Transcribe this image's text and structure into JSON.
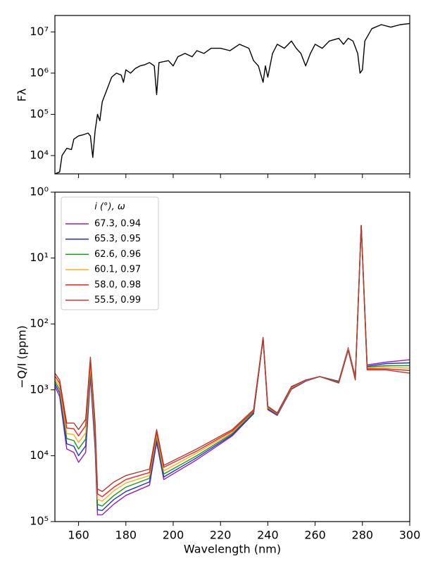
{
  "chart_data": [
    {
      "type": "line",
      "ylabel": "Fλ",
      "color": "#000000",
      "log_y": true,
      "xlim": [
        150,
        300
      ],
      "xticks": [
        160,
        180,
        200,
        220,
        240,
        260,
        280,
        300
      ],
      "ylim": [
        3600,
        25000000
      ],
      "yticks": [
        {
          "value": 10000,
          "label": "10⁴"
        },
        {
          "value": 100000,
          "label": "10⁵"
        },
        {
          "value": 1000000,
          "label": "10⁶"
        },
        {
          "value": 10000000,
          "label": "10⁷"
        }
      ],
      "x": [
        150,
        152,
        153,
        155,
        157,
        158,
        160,
        162,
        164,
        165,
        166,
        167,
        168,
        169,
        170,
        172,
        174,
        176,
        178,
        179,
        180,
        182,
        184,
        186,
        188,
        190,
        192,
        193,
        194,
        196,
        198,
        200,
        202,
        205,
        208,
        210,
        213,
        216,
        220,
        224,
        228,
        232,
        234,
        236,
        238,
        239,
        240,
        242,
        244,
        247,
        250,
        252,
        254,
        256,
        258,
        260,
        263,
        266,
        270,
        272,
        274,
        276,
        278,
        279,
        280,
        281,
        284,
        288,
        292,
        296,
        300
      ],
      "values": [
        3600,
        4000,
        10000,
        15000,
        14000,
        25000,
        30000,
        32000,
        35000,
        30000,
        9000,
        40000,
        100000,
        70000,
        200000,
        400000,
        800000,
        1000000,
        900000,
        600000,
        1200000,
        1000000,
        1300000,
        1500000,
        1600000,
        1800000,
        1500000,
        300000,
        1800000,
        1900000,
        2000000,
        1500000,
        2500000,
        3000000,
        2500000,
        3500000,
        3000000,
        4000000,
        4000000,
        3500000,
        5000000,
        4000000,
        2000000,
        1500000,
        600000,
        1500000,
        800000,
        3000000,
        5000000,
        4000000,
        6000000,
        4000000,
        3000000,
        1500000,
        3000000,
        5000000,
        4000000,
        6000000,
        7000000,
        5000000,
        7000000,
        6000000,
        3000000,
        1000000,
        1200000,
        6000000,
        12000000,
        15000000,
        13000000,
        15000000,
        16000000
      ]
    },
    {
      "type": "line",
      "xlabel": "Wavelength (nm)",
      "ylabel": "−Q/I (ppm)",
      "log_y": true,
      "invert_y": true,
      "xlim": [
        150,
        300
      ],
      "xticks": [
        160,
        180,
        200,
        220,
        240,
        260,
        280,
        300
      ],
      "ylim": [
        1,
        100000
      ],
      "yticks": [
        {
          "value": 1,
          "label": "10⁰"
        },
        {
          "value": 10,
          "label": "10¹"
        },
        {
          "value": 100,
          "label": "10²"
        },
        {
          "value": 1000,
          "label": "10³"
        },
        {
          "value": 10000,
          "label": "10⁴"
        },
        {
          "value": 100000,
          "label": "10⁵"
        }
      ],
      "legend_title": "i (°),   ω",
      "legend": "upper left",
      "x": [
        150,
        152,
        155,
        158,
        160,
        163,
        165,
        167,
        168,
        170,
        175,
        180,
        190,
        193,
        196,
        210,
        225,
        234,
        238,
        240,
        244,
        250,
        256,
        262,
        270,
        274,
        277,
        279.5,
        282,
        290,
        300
      ],
      "series": [
        {
          "name": "67.3, 0.94",
          "color": "#9b1fb5",
          "values": [
            890,
            1260,
            7900,
            8900,
            12600,
            8900,
            630,
            7900,
            79000,
            79000,
            54000,
            40000,
            28000,
            6300,
            23000,
            11500,
            5000,
            2300,
            170,
            2000,
            2450,
            980,
            740,
            630,
            740,
            230,
            630,
            3.2,
            420,
            380,
            350
          ]
        },
        {
          "name": "65.3, 0.95",
          "color": "#1f2fe0",
          "values": [
            810,
            1120,
            6600,
            7200,
            10000,
            7100,
            550,
            6600,
            66000,
            68000,
            46000,
            35000,
            25000,
            5800,
            21000,
            10700,
            4800,
            2300,
            168,
            1950,
            2400,
            960,
            730,
            630,
            750,
            240,
            650,
            3.2,
            440,
            400,
            390
          ]
        },
        {
          "name": "62.6, 0.96",
          "color": "#169a16",
          "values": [
            740,
            1000,
            5500,
            5900,
            7900,
            5600,
            480,
            5500,
            55000,
            58000,
            40000,
            30000,
            22000,
            5200,
            19000,
            10000,
            4600,
            2200,
            166,
            1900,
            2350,
            950,
            720,
            630,
            760,
            240,
            660,
            3.2,
            450,
            430,
            430
          ]
        },
        {
          "name": "60.1, 0.97",
          "color": "#ffae1a",
          "values": [
            680,
            890,
            4600,
            4800,
            6300,
            4500,
            420,
            4600,
            46000,
            49000,
            34000,
            26000,
            20000,
            4800,
            17000,
            9100,
            4400,
            2100,
            164,
            1860,
            2300,
            930,
            720,
            630,
            780,
            240,
            680,
            3.2,
            470,
            450,
            470
          ]
        },
        {
          "name": "58.0, 0.98",
          "color": "#f02020",
          "values": [
            620,
            790,
            3800,
            3900,
            5000,
            3500,
            360,
            3800,
            38000,
            42000,
            30000,
            23000,
            18000,
            4400,
            15000,
            8500,
            4200,
            2100,
            162,
            1820,
            2280,
            910,
            710,
            630,
            780,
            250,
            690,
            3.2,
            480,
            480,
            510
          ]
        },
        {
          "name": "55.5, 0.99",
          "color": "#b03a2e",
          "values": [
            560,
            710,
            3200,
            3200,
            4000,
            2800,
            320,
            3200,
            32000,
            35000,
            25000,
            20000,
            16000,
            4000,
            14000,
            7900,
            4000,
            2000,
            160,
            1780,
            2240,
            890,
            710,
            630,
            790,
            250,
            710,
            3.2,
            500,
            500,
            560
          ]
        }
      ]
    }
  ]
}
